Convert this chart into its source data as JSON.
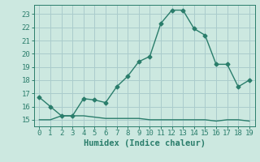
{
  "xlabel": "Humidex (Indice chaleur)",
  "line1_x": [
    0,
    1,
    2,
    3,
    4,
    5,
    6,
    7,
    8,
    9,
    10,
    11,
    12,
    13,
    14,
    15,
    16,
    17,
    18,
    19
  ],
  "line1_y": [
    16.7,
    16.0,
    15.3,
    15.3,
    16.6,
    16.5,
    16.3,
    17.5,
    18.3,
    19.4,
    19.8,
    22.3,
    23.3,
    23.3,
    21.9,
    21.4,
    19.2,
    19.2,
    17.5,
    18.0
  ],
  "line2_x": [
    0,
    1,
    2,
    3,
    4,
    5,
    6,
    7,
    8,
    9,
    10,
    11,
    12,
    13,
    14,
    15,
    16,
    17,
    18,
    19
  ],
  "line2_y": [
    15.0,
    15.0,
    15.3,
    15.3,
    15.3,
    15.2,
    15.1,
    15.1,
    15.1,
    15.1,
    15.0,
    15.0,
    15.0,
    15.0,
    15.0,
    15.0,
    14.9,
    15.0,
    15.0,
    14.9
  ],
  "line_color": "#2a7d6b",
  "bg_color": "#cce8e0",
  "grid_color": "#aacccc",
  "ylim": [
    14.5,
    23.7
  ],
  "xlim": [
    -0.5,
    19.5
  ],
  "yticks": [
    15,
    16,
    17,
    18,
    19,
    20,
    21,
    22,
    23
  ],
  "xticks": [
    0,
    1,
    2,
    3,
    4,
    5,
    6,
    7,
    8,
    9,
    10,
    11,
    12,
    13,
    14,
    15,
    16,
    17,
    18,
    19
  ],
  "marker": "D",
  "marker_size": 2.5,
  "line_width": 1.0,
  "tick_fontsize": 6.5,
  "xlabel_fontsize": 7.5
}
